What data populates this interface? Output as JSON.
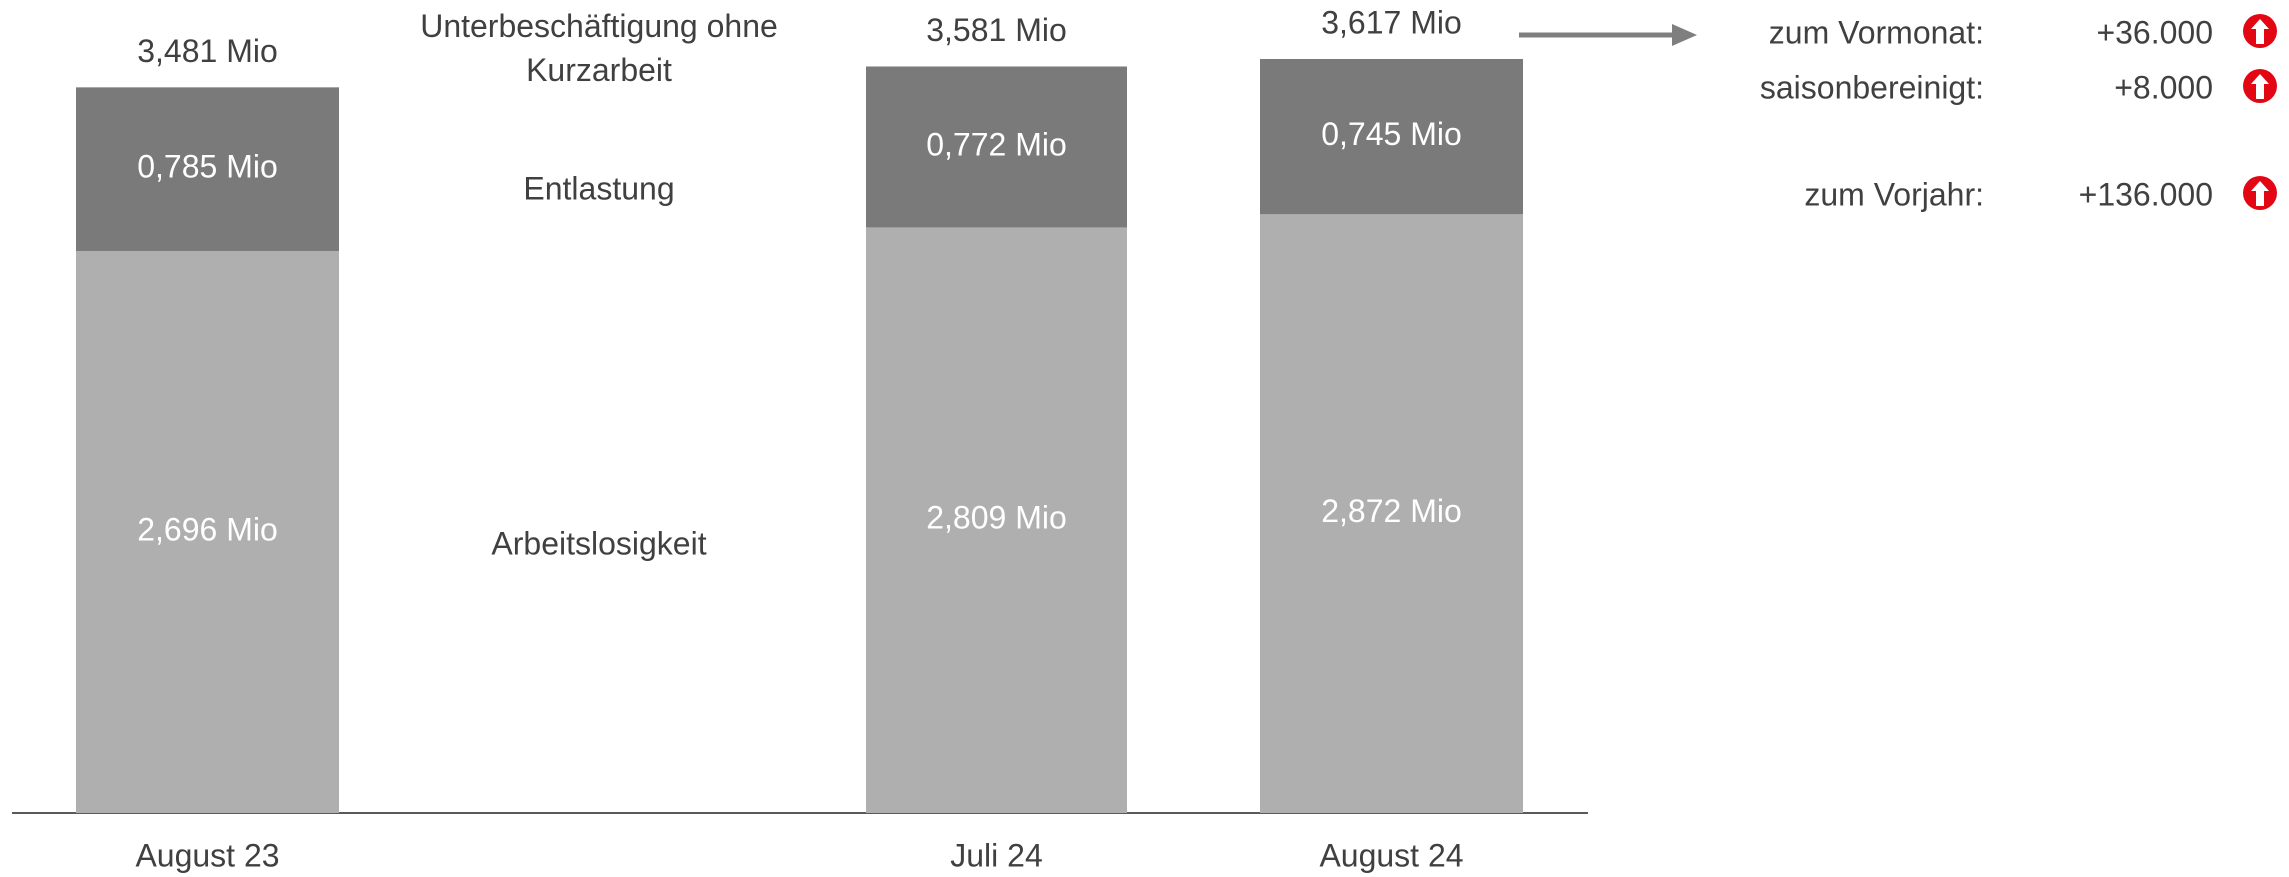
{
  "chart_data": {
    "type": "stacked-bar",
    "categories": [
      "August 23",
      null,
      "Juli 24",
      "August 24"
    ],
    "series": [
      {
        "name": "Arbeitslosigkeit",
        "color": "#afafaf",
        "values": [
          2.696,
          null,
          2.809,
          2.872
        ],
        "value_labels": [
          "2,696 Mio",
          null,
          "2,809 Mio",
          "2,872 Mio"
        ]
      },
      {
        "name": "Entlastung",
        "color": "#7a7a7a",
        "values": [
          0.785,
          null,
          0.772,
          0.745
        ],
        "value_labels": [
          "0,785 Mio",
          null,
          "0,772 Mio",
          "0,745 Mio"
        ]
      }
    ],
    "totals": {
      "name": "Unterbeschäftigung ohne Kurzarbeit",
      "values": [
        3.481,
        null,
        3.581,
        3.617
      ],
      "value_labels": [
        "3,481 Mio",
        null,
        "3,581 Mio",
        "3,617 Mio"
      ]
    },
    "ylim": [
      0,
      3.9
    ]
  },
  "changes": [
    {
      "label": "zum Vormonat:",
      "value": "+36.000"
    },
    {
      "label": "saisonbereinigt:",
      "value": "+8.000"
    },
    {
      "label": "zum Vorjahr:",
      "value": "+136.000"
    }
  ]
}
